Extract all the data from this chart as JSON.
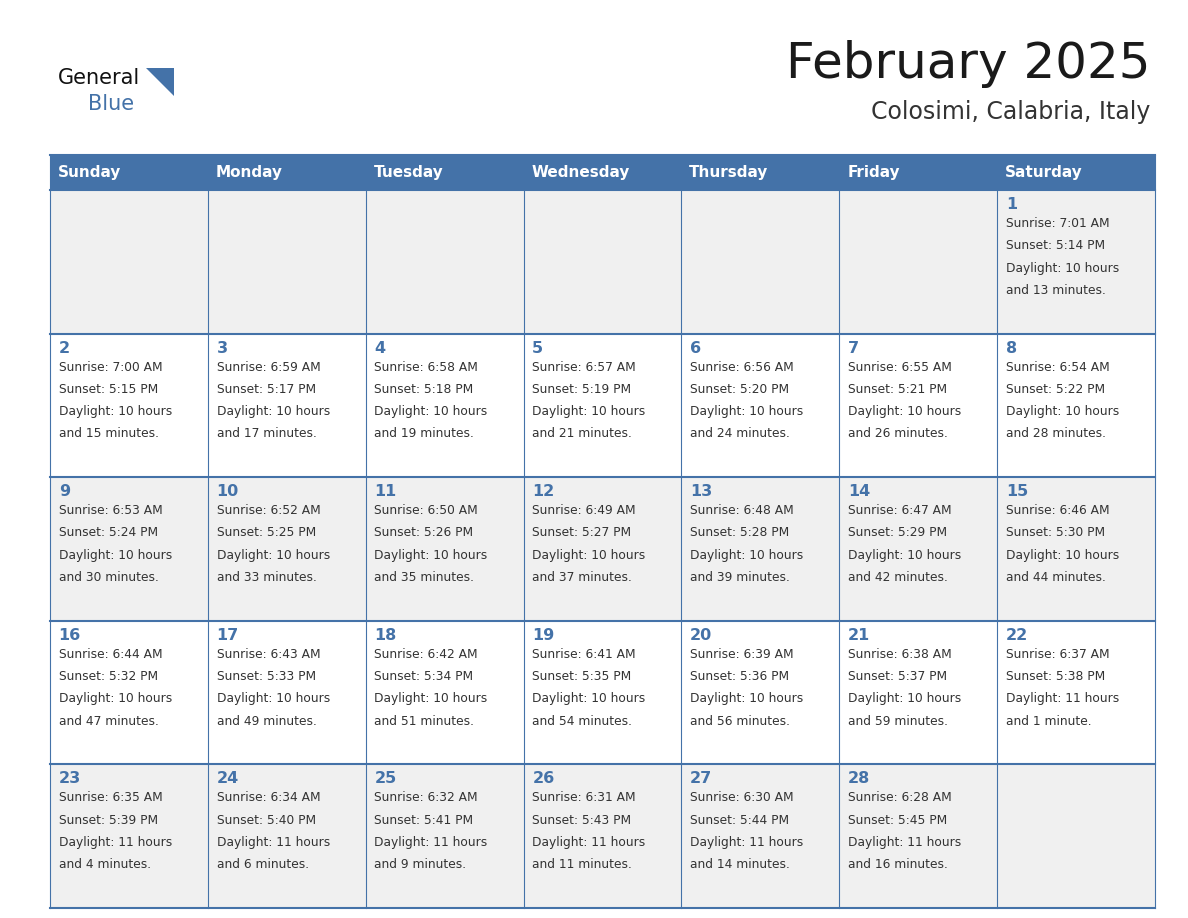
{
  "title": "February 2025",
  "subtitle": "Colosimi, Calabria, Italy",
  "header_bg": "#4472A8",
  "header_text_color": "#ffffff",
  "odd_row_bg": "#f0f0f0",
  "even_row_bg": "#ffffff",
  "border_color": "#4472A8",
  "day_headers": [
    "Sunday",
    "Monday",
    "Tuesday",
    "Wednesday",
    "Thursday",
    "Friday",
    "Saturday"
  ],
  "title_color": "#1a1a1a",
  "subtitle_color": "#333333",
  "day_num_color": "#4472A8",
  "info_color": "#333333",
  "logo_black": "#111111",
  "logo_blue": "#4472A8",
  "days": [
    {
      "date": 1,
      "col": 6,
      "row": 0,
      "sunrise": "7:01 AM",
      "sunset": "5:14 PM",
      "daylight_line1": "Daylight: 10 hours",
      "daylight_line2": "and 13 minutes."
    },
    {
      "date": 2,
      "col": 0,
      "row": 1,
      "sunrise": "7:00 AM",
      "sunset": "5:15 PM",
      "daylight_line1": "Daylight: 10 hours",
      "daylight_line2": "and 15 minutes."
    },
    {
      "date": 3,
      "col": 1,
      "row": 1,
      "sunrise": "6:59 AM",
      "sunset": "5:17 PM",
      "daylight_line1": "Daylight: 10 hours",
      "daylight_line2": "and 17 minutes."
    },
    {
      "date": 4,
      "col": 2,
      "row": 1,
      "sunrise": "6:58 AM",
      "sunset": "5:18 PM",
      "daylight_line1": "Daylight: 10 hours",
      "daylight_line2": "and 19 minutes."
    },
    {
      "date": 5,
      "col": 3,
      "row": 1,
      "sunrise": "6:57 AM",
      "sunset": "5:19 PM",
      "daylight_line1": "Daylight: 10 hours",
      "daylight_line2": "and 21 minutes."
    },
    {
      "date": 6,
      "col": 4,
      "row": 1,
      "sunrise": "6:56 AM",
      "sunset": "5:20 PM",
      "daylight_line1": "Daylight: 10 hours",
      "daylight_line2": "and 24 minutes."
    },
    {
      "date": 7,
      "col": 5,
      "row": 1,
      "sunrise": "6:55 AM",
      "sunset": "5:21 PM",
      "daylight_line1": "Daylight: 10 hours",
      "daylight_line2": "and 26 minutes."
    },
    {
      "date": 8,
      "col": 6,
      "row": 1,
      "sunrise": "6:54 AM",
      "sunset": "5:22 PM",
      "daylight_line1": "Daylight: 10 hours",
      "daylight_line2": "and 28 minutes."
    },
    {
      "date": 9,
      "col": 0,
      "row": 2,
      "sunrise": "6:53 AM",
      "sunset": "5:24 PM",
      "daylight_line1": "Daylight: 10 hours",
      "daylight_line2": "and 30 minutes."
    },
    {
      "date": 10,
      "col": 1,
      "row": 2,
      "sunrise": "6:52 AM",
      "sunset": "5:25 PM",
      "daylight_line1": "Daylight: 10 hours",
      "daylight_line2": "and 33 minutes."
    },
    {
      "date": 11,
      "col": 2,
      "row": 2,
      "sunrise": "6:50 AM",
      "sunset": "5:26 PM",
      "daylight_line1": "Daylight: 10 hours",
      "daylight_line2": "and 35 minutes."
    },
    {
      "date": 12,
      "col": 3,
      "row": 2,
      "sunrise": "6:49 AM",
      "sunset": "5:27 PM",
      "daylight_line1": "Daylight: 10 hours",
      "daylight_line2": "and 37 minutes."
    },
    {
      "date": 13,
      "col": 4,
      "row": 2,
      "sunrise": "6:48 AM",
      "sunset": "5:28 PM",
      "daylight_line1": "Daylight: 10 hours",
      "daylight_line2": "and 39 minutes."
    },
    {
      "date": 14,
      "col": 5,
      "row": 2,
      "sunrise": "6:47 AM",
      "sunset": "5:29 PM",
      "daylight_line1": "Daylight: 10 hours",
      "daylight_line2": "and 42 minutes."
    },
    {
      "date": 15,
      "col": 6,
      "row": 2,
      "sunrise": "6:46 AM",
      "sunset": "5:30 PM",
      "daylight_line1": "Daylight: 10 hours",
      "daylight_line2": "and 44 minutes."
    },
    {
      "date": 16,
      "col": 0,
      "row": 3,
      "sunrise": "6:44 AM",
      "sunset": "5:32 PM",
      "daylight_line1": "Daylight: 10 hours",
      "daylight_line2": "and 47 minutes."
    },
    {
      "date": 17,
      "col": 1,
      "row": 3,
      "sunrise": "6:43 AM",
      "sunset": "5:33 PM",
      "daylight_line1": "Daylight: 10 hours",
      "daylight_line2": "and 49 minutes."
    },
    {
      "date": 18,
      "col": 2,
      "row": 3,
      "sunrise": "6:42 AM",
      "sunset": "5:34 PM",
      "daylight_line1": "Daylight: 10 hours",
      "daylight_line2": "and 51 minutes."
    },
    {
      "date": 19,
      "col": 3,
      "row": 3,
      "sunrise": "6:41 AM",
      "sunset": "5:35 PM",
      "daylight_line1": "Daylight: 10 hours",
      "daylight_line2": "and 54 minutes."
    },
    {
      "date": 20,
      "col": 4,
      "row": 3,
      "sunrise": "6:39 AM",
      "sunset": "5:36 PM",
      "daylight_line1": "Daylight: 10 hours",
      "daylight_line2": "and 56 minutes."
    },
    {
      "date": 21,
      "col": 5,
      "row": 3,
      "sunrise": "6:38 AM",
      "sunset": "5:37 PM",
      "daylight_line1": "Daylight: 10 hours",
      "daylight_line2": "and 59 minutes."
    },
    {
      "date": 22,
      "col": 6,
      "row": 3,
      "sunrise": "6:37 AM",
      "sunset": "5:38 PM",
      "daylight_line1": "Daylight: 11 hours",
      "daylight_line2": "and 1 minute."
    },
    {
      "date": 23,
      "col": 0,
      "row": 4,
      "sunrise": "6:35 AM",
      "sunset": "5:39 PM",
      "daylight_line1": "Daylight: 11 hours",
      "daylight_line2": "and 4 minutes."
    },
    {
      "date": 24,
      "col": 1,
      "row": 4,
      "sunrise": "6:34 AM",
      "sunset": "5:40 PM",
      "daylight_line1": "Daylight: 11 hours",
      "daylight_line2": "and 6 minutes."
    },
    {
      "date": 25,
      "col": 2,
      "row": 4,
      "sunrise": "6:32 AM",
      "sunset": "5:41 PM",
      "daylight_line1": "Daylight: 11 hours",
      "daylight_line2": "and 9 minutes."
    },
    {
      "date": 26,
      "col": 3,
      "row": 4,
      "sunrise": "6:31 AM",
      "sunset": "5:43 PM",
      "daylight_line1": "Daylight: 11 hours",
      "daylight_line2": "and 11 minutes."
    },
    {
      "date": 27,
      "col": 4,
      "row": 4,
      "sunrise": "6:30 AM",
      "sunset": "5:44 PM",
      "daylight_line1": "Daylight: 11 hours",
      "daylight_line2": "and 14 minutes."
    },
    {
      "date": 28,
      "col": 5,
      "row": 4,
      "sunrise": "6:28 AM",
      "sunset": "5:45 PM",
      "daylight_line1": "Daylight: 11 hours",
      "daylight_line2": "and 16 minutes."
    }
  ]
}
